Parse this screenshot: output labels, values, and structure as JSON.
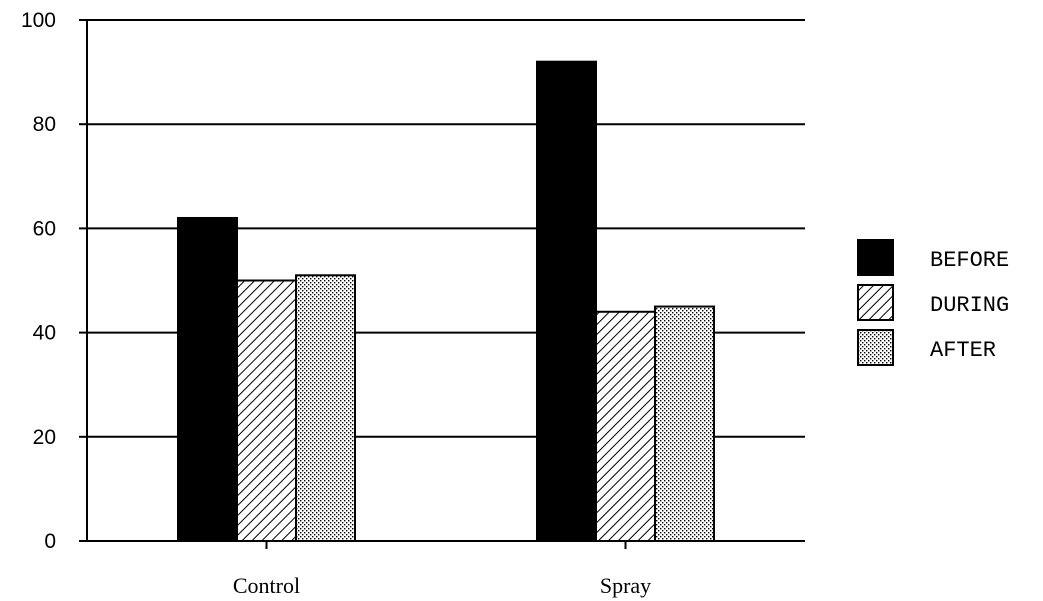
{
  "chart_data": {
    "type": "bar",
    "categories": [
      "Control",
      "Spray"
    ],
    "series": [
      {
        "name": "BEFORE",
        "values": [
          62,
          92
        ],
        "pattern": "solid"
      },
      {
        "name": "DURING",
        "values": [
          50,
          44
        ],
        "pattern": "hatch"
      },
      {
        "name": "AFTER",
        "values": [
          51,
          45
        ],
        "pattern": "dots"
      }
    ],
    "yticks": [
      0,
      20,
      40,
      60,
      80,
      100
    ],
    "ylim": [
      0,
      100
    ],
    "grid": true,
    "legend_position": "right",
    "colors": {
      "ink": "#000000",
      "background": "#ffffff"
    }
  }
}
